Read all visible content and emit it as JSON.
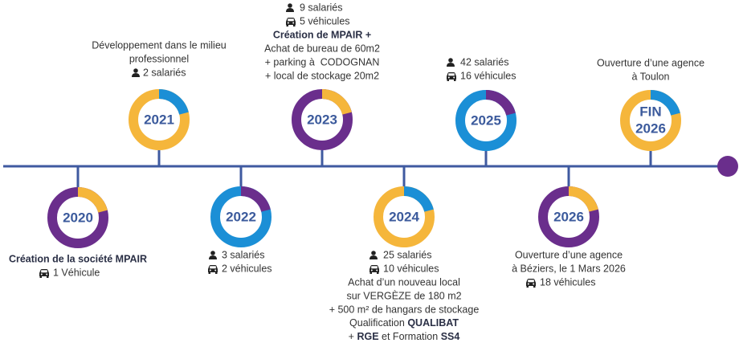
{
  "milestones": [
    {
      "year": "2020",
      "lines": [
        "Création de la société MPAIR",
        "1 Véhicule"
      ]
    },
    {
      "year": "2021",
      "lines": [
        "Développement dans le milieu",
        "professionnel",
        "2 salariés"
      ]
    },
    {
      "year": "2022",
      "lines": [
        "3 salariés",
        "2 véhicules"
      ]
    },
    {
      "year": "2023",
      "lines": [
        "9 salariés",
        "5 véhicules",
        "Création de MPAIR +",
        "Achat de bureau de 60m2",
        "+ parking à  CODOGNAN",
        "+ local de stockage 20m2"
      ]
    },
    {
      "year": "2024",
      "lines": [
        "25 salariés",
        "10 véhicules",
        "Achat d’un nouveau local",
        "sur VERGÈZE de 180 m2",
        "+ 500 m² de hangars de stockage"
      ],
      "qualification": {
        "text": "Qualification",
        "bold": "QUALIBAT"
      },
      "formation": {
        "prefix": "+",
        "rge": "RGE",
        "middle": "et Formation",
        "ss4": "SS4"
      }
    },
    {
      "year": "2025",
      "lines": [
        "42 salariés",
        "16 véhicules"
      ]
    },
    {
      "year": "2026",
      "lines": [
        "Ouverture d’une agence",
        "à Béziers, le 1 Mars 2026",
        "18 véhicules"
      ]
    },
    {
      "year": [
        "FIN",
        "2026"
      ],
      "lines": [
        "Ouverture d’une agence",
        "à Toulon"
      ]
    }
  ]
}
